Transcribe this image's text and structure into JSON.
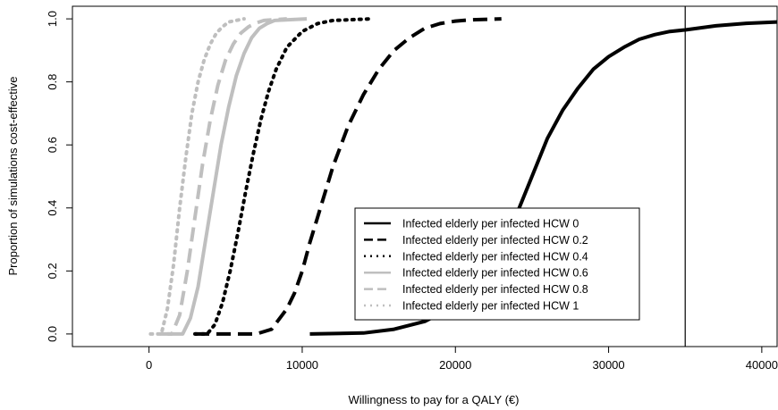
{
  "chart_data": {
    "type": "line",
    "title": "",
    "xlabel": "Willingness to pay for a QALY (€)",
    "ylabel": "Proportion of simulations cost-effective",
    "xlim": [
      -5000,
      41000
    ],
    "ylim": [
      -0.04,
      1.04
    ],
    "xticks": [
      0,
      10000,
      20000,
      30000,
      40000
    ],
    "xtick_labels": [
      "0",
      "10000",
      "20000",
      "30000",
      "40000"
    ],
    "yticks": [
      0.0,
      0.2,
      0.4,
      0.6,
      0.8,
      1.0
    ],
    "ytick_labels": [
      "0.0",
      "0.2",
      "0.4",
      "0.6",
      "0.8",
      "1.0"
    ],
    "grid": false,
    "legend_position": "bottom-right",
    "reference_line_x": 35000,
    "series": [
      {
        "name": "Infected elderly per infected HCW 0",
        "color": "#000000",
        "dash": "solid",
        "x": [
          10500,
          14000,
          16000,
          18000,
          20000,
          22000,
          23000,
          24000,
          25000,
          26000,
          27000,
          28000,
          29000,
          30000,
          31000,
          32000,
          33000,
          34000,
          35000,
          37000,
          39000,
          41000
        ],
        "y": [
          0.0,
          0.003,
          0.015,
          0.04,
          0.09,
          0.18,
          0.27,
          0.38,
          0.5,
          0.62,
          0.71,
          0.78,
          0.84,
          0.88,
          0.91,
          0.935,
          0.95,
          0.96,
          0.965,
          0.978,
          0.986,
          0.99
        ]
      },
      {
        "name": "Infected elderly per infected HCW 0.2",
        "color": "#000000",
        "dash": "long",
        "x": [
          3000,
          7000,
          8000,
          9000,
          9500,
          10000,
          10500,
          11000,
          12000,
          13000,
          14000,
          15000,
          16000,
          17000,
          18000,
          19000,
          20000,
          21000,
          23000
        ],
        "y": [
          0.0,
          0.0,
          0.015,
          0.08,
          0.13,
          0.2,
          0.29,
          0.37,
          0.53,
          0.66,
          0.76,
          0.84,
          0.9,
          0.94,
          0.97,
          0.985,
          0.993,
          0.997,
          1.0
        ]
      },
      {
        "name": "Infected elderly per infected HCW 0.4",
        "color": "#000000",
        "dash": "dotted",
        "x": [
          3000,
          3800,
          4300,
          4800,
          5300,
          5800,
          6300,
          6800,
          7300,
          7800,
          8300,
          9000,
          10000,
          11000,
          12000,
          14500
        ],
        "y": [
          0.0,
          0.0,
          0.03,
          0.1,
          0.2,
          0.32,
          0.45,
          0.57,
          0.68,
          0.77,
          0.84,
          0.91,
          0.96,
          0.985,
          0.995,
          1.0
        ]
      },
      {
        "name": "Infected elderly per infected HCW 0.6",
        "color": "#bfbfbf",
        "dash": "solid",
        "x": [
          1200,
          2200,
          2700,
          3200,
          3700,
          4200,
          4700,
          5200,
          5700,
          6200,
          6700,
          7200,
          7700,
          8200,
          10300
        ],
        "y": [
          0.0,
          0.0,
          0.05,
          0.15,
          0.3,
          0.45,
          0.6,
          0.72,
          0.82,
          0.89,
          0.94,
          0.97,
          0.985,
          0.995,
          1.0
        ]
      },
      {
        "name": "Infected elderly per infected HCW 0.8",
        "color": "#bfbfbf",
        "dash": "long",
        "x": [
          700,
          1500,
          2000,
          2500,
          3000,
          3500,
          4000,
          4500,
          5000,
          5500,
          6000,
          6500,
          7000,
          7500,
          9000
        ],
        "y": [
          0.0,
          0.0,
          0.06,
          0.2,
          0.37,
          0.54,
          0.68,
          0.79,
          0.87,
          0.92,
          0.955,
          0.975,
          0.987,
          0.995,
          1.0
        ]
      },
      {
        "name": "Infected elderly per infected HCW 1",
        "color": "#bfbfbf",
        "dash": "dotted",
        "x": [
          100,
          800,
          1200,
          1600,
          2000,
          2400,
          2800,
          3200,
          3600,
          4000,
          4400,
          4800,
          5200,
          6200
        ],
        "y": [
          0.0,
          0.0,
          0.08,
          0.22,
          0.4,
          0.56,
          0.7,
          0.8,
          0.87,
          0.92,
          0.955,
          0.975,
          0.99,
          1.0
        ]
      }
    ]
  }
}
